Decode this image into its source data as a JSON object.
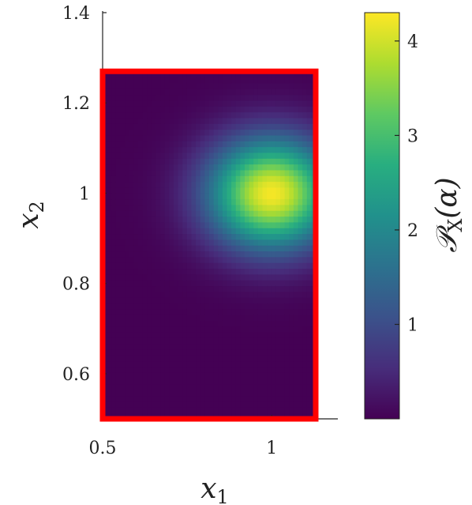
{
  "chart_data": {
    "type": "heatmap",
    "xlabel": {
      "main": "x",
      "sub": "1"
    },
    "ylabel": {
      "main": "x",
      "sub": "2"
    },
    "colorbar_label": {
      "main": "𝒫",
      "sub": "X",
      "arg": "(α)"
    },
    "xlim": [
      0.5,
      1.13
    ],
    "ylim": [
      0.5,
      1.4
    ],
    "x_ticks": [
      {
        "value": 0.5,
        "label": "0.5"
      },
      {
        "value": 1.0,
        "label": "1"
      }
    ],
    "y_ticks": [
      {
        "value": 0.6,
        "label": "0.6"
      },
      {
        "value": 0.8,
        "label": "0.8"
      },
      {
        "value": 1.0,
        "label": "1"
      },
      {
        "value": 1.2,
        "label": "1.2"
      },
      {
        "value": 1.4,
        "label": "1.4"
      }
    ],
    "colorbar_ticks": [
      {
        "value": 1,
        "label": "1"
      },
      {
        "value": 2,
        "label": "2"
      },
      {
        "value": 3,
        "label": "3"
      },
      {
        "value": 4,
        "label": "4"
      }
    ],
    "colorbar_range": [
      0,
      4.3
    ],
    "colormap": "viridis",
    "data_region": {
      "x": [
        0.5,
        1.13
      ],
      "y": [
        0.5,
        1.27
      ]
    },
    "peak": {
      "x": 1.0,
      "y": 1.0,
      "value": 4.25
    },
    "spread": {
      "sx": 0.13,
      "sy": 0.085
    },
    "grid_resolution": {
      "nx": 48,
      "ny": 60
    },
    "region_outline_color": "#ff0000"
  }
}
